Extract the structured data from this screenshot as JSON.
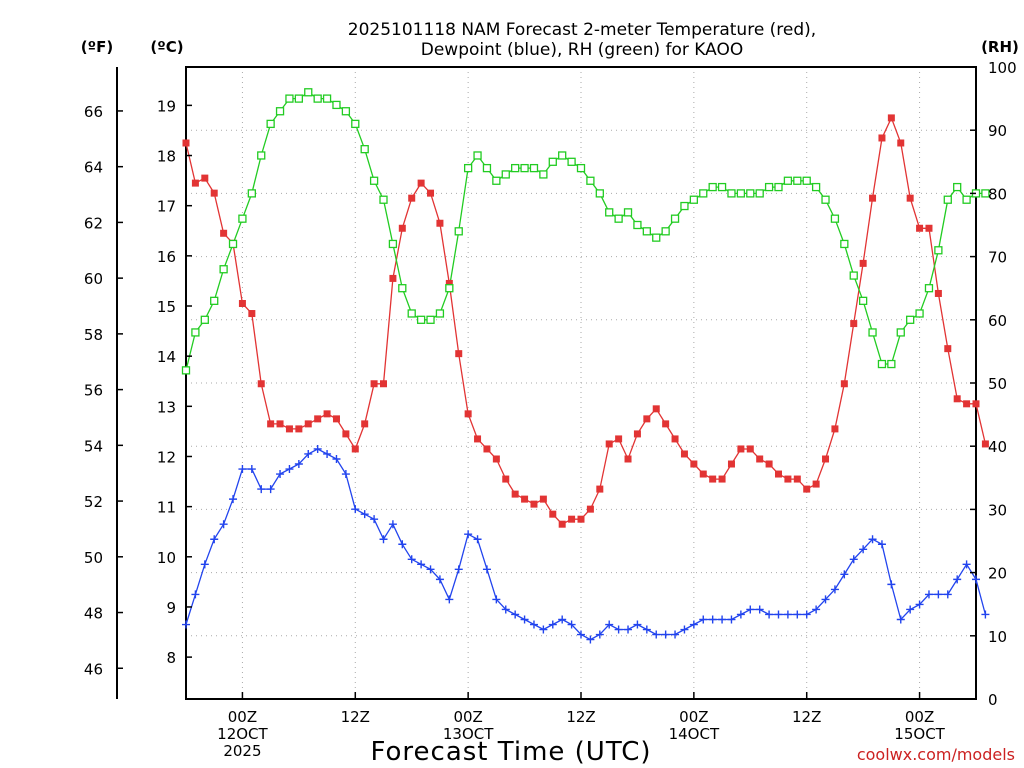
{
  "chart_data": {
    "type": "line",
    "title_lines": [
      "2025101118 NAM Forecast 2-meter Temperature (red),",
      "Dewpoint (blue), RH (green) for KAOO"
    ],
    "xlabel": "Forecast Time (UTC)",
    "credit": "coolwx.com/models",
    "x_unit": "forecast hours from 2025-10-11 18Z",
    "xlim": [
      0,
      84
    ],
    "x_ticks": [
      {
        "hour": 6,
        "lines": [
          "00Z",
          "12OCT",
          "2025"
        ]
      },
      {
        "hour": 18,
        "lines": [
          "12Z"
        ]
      },
      {
        "hour": 30,
        "lines": [
          "00Z",
          "13OCT"
        ]
      },
      {
        "hour": 42,
        "lines": [
          "12Z"
        ]
      },
      {
        "hour": 54,
        "lines": [
          "00Z",
          "14OCT"
        ]
      },
      {
        "hour": 66,
        "lines": [
          "12Z"
        ]
      },
      {
        "hour": 78,
        "lines": [
          "00Z",
          "15OCT"
        ]
      }
    ],
    "left_axis_c": {
      "label": "(ºC)",
      "ylim": [
        7.165,
        19.765
      ],
      "ticks": [
        "8",
        "9",
        "10",
        "11",
        "12",
        "13",
        "14",
        "15",
        "16",
        "17",
        "18",
        "19"
      ]
    },
    "far_left_axis_f": {
      "label": "(ºF)",
      "ticks": [
        "46",
        "48",
        "50",
        "52",
        "54",
        "56",
        "58",
        "60",
        "62",
        "64",
        "66"
      ]
    },
    "right_axis_rh": {
      "label": "(RH)",
      "ylim": [
        0,
        100
      ],
      "ticks": [
        "0",
        "10",
        "20",
        "30",
        "40",
        "50",
        "60",
        "70",
        "80",
        "90",
        "100"
      ]
    },
    "series": [
      {
        "name": "Temperature",
        "axis": "C",
        "color": "#e23434",
        "marker": "filled-square",
        "values": [
          18.25,
          17.45,
          17.55,
          17.25,
          16.45,
          16.25,
          15.05,
          14.85,
          13.45,
          12.65,
          12.65,
          12.55,
          12.55,
          12.65,
          12.75,
          12.85,
          12.75,
          12.45,
          12.15,
          12.65,
          13.45,
          13.45,
          15.55,
          16.55,
          17.15,
          17.45,
          17.25,
          16.65,
          15.45,
          14.05,
          12.85,
          12.35,
          12.15,
          11.95,
          11.55,
          11.25,
          11.15,
          11.05,
          11.15,
          10.85,
          10.65,
          10.75,
          10.75,
          10.95,
          11.35,
          12.25,
          12.35,
          11.95,
          12.45,
          12.75,
          12.95,
          12.65,
          12.35,
          12.05,
          11.85,
          11.65,
          11.55,
          11.55,
          11.85,
          12.15,
          12.15,
          11.95,
          11.85,
          11.65,
          11.55,
          11.55,
          11.35,
          11.45,
          11.95,
          12.55,
          13.45,
          14.65,
          15.85,
          17.15,
          18.35,
          18.75,
          18.25,
          17.15,
          16.55,
          16.55,
          15.25,
          14.15,
          13.15,
          13.05,
          13.05,
          12.25
        ]
      },
      {
        "name": "Dewpoint",
        "axis": "C",
        "color": "#2244ee",
        "marker": "plus",
        "values": [
          8.65,
          9.25,
          9.85,
          10.35,
          10.65,
          11.15,
          11.75,
          11.75,
          11.35,
          11.35,
          11.65,
          11.75,
          11.85,
          12.05,
          12.15,
          12.05,
          11.95,
          11.65,
          10.95,
          10.85,
          10.75,
          10.35,
          10.65,
          10.25,
          9.95,
          9.85,
          9.75,
          9.55,
          9.15,
          9.75,
          10.45,
          10.35,
          9.75,
          9.15,
          8.95,
          8.85,
          8.75,
          8.65,
          8.55,
          8.65,
          8.75,
          8.65,
          8.45,
          8.35,
          8.45,
          8.65,
          8.55,
          8.55,
          8.65,
          8.55,
          8.45,
          8.45,
          8.45,
          8.55,
          8.65,
          8.75,
          8.75,
          8.75,
          8.75,
          8.85,
          8.95,
          8.95,
          8.85,
          8.85,
          8.85,
          8.85,
          8.85,
          8.95,
          9.15,
          9.35,
          9.65,
          9.95,
          10.15,
          10.35,
          10.25,
          9.45,
          8.75,
          8.95,
          9.05,
          9.25,
          9.25,
          9.25,
          9.55,
          9.85,
          9.55,
          8.85
        ]
      },
      {
        "name": "RH",
        "axis": "RH",
        "color": "#22cc22",
        "marker": "open-square",
        "values": [
          52,
          58,
          60,
          63,
          68,
          72,
          76,
          80,
          86,
          91,
          93,
          95,
          95,
          96,
          95,
          95,
          94,
          93,
          91,
          87,
          82,
          79,
          72,
          65,
          61,
          60,
          60,
          61,
          65,
          74,
          84,
          86,
          84,
          82,
          83,
          84,
          84,
          84,
          83,
          85,
          86,
          85,
          84,
          82,
          80,
          77,
          76,
          77,
          75,
          74,
          73,
          74,
          76,
          78,
          79,
          80,
          81,
          81,
          80,
          80,
          80,
          80,
          81,
          81,
          82,
          82,
          82,
          81,
          79,
          76,
          72,
          67,
          63,
          58,
          53,
          53,
          58,
          60,
          61,
          65,
          71,
          79,
          81,
          79,
          80,
          80
        ]
      }
    ]
  }
}
